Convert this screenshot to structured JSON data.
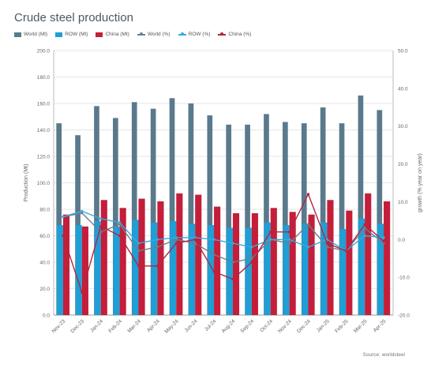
{
  "chart_data": {
    "type": "bar",
    "title": "Crude steel production",
    "ylabel": "Production (Mt)",
    "y2label": "growth (% year on year)",
    "ylim": [
      0,
      200
    ],
    "y2lim": [
      -20,
      50
    ],
    "yticks": [
      "0.0",
      "20.0",
      "40.0",
      "60.0",
      "80.0",
      "100.0",
      "120.0",
      "140.0",
      "160.0",
      "180.0",
      "200.0"
    ],
    "y2ticks": [
      "-20.0",
      "-10.0",
      "0.0",
      "10.0",
      "20.0",
      "30.0",
      "40.0",
      "50.0"
    ],
    "grid": true,
    "legend": "top-left",
    "categories": [
      "Nov-23",
      "Dec-23",
      "Jan-24",
      "Feb-24",
      "Mar-24",
      "Apr-24",
      "May-24",
      "Jun-24",
      "Jul-24",
      "Aug-24",
      "Sep-24",
      "Oct-24",
      "Nov-24",
      "Dec-24",
      "Jan-25",
      "Feb-25",
      "Mar-25",
      "Apr-25"
    ],
    "bar_series": [
      {
        "name": "World (Mt)",
        "color": "#5a7a8c",
        "values": [
          145,
          136,
          158,
          149,
          161,
          156,
          164,
          160,
          151,
          144,
          144,
          152,
          146,
          145,
          157,
          145,
          166,
          155
        ]
      },
      {
        "name": "ROW (Mt)",
        "color": "#1e9fd6",
        "values": [
          68,
          68,
          71,
          67,
          72,
          70,
          71,
          69,
          68,
          66,
          66,
          70,
          68,
          69,
          70,
          65,
          73,
          69
        ]
      },
      {
        "name": "China (Mt)",
        "color": "#c41e3a",
        "values": [
          76,
          67,
          87,
          81,
          88,
          86,
          92,
          91,
          82,
          77,
          77,
          81,
          78,
          76,
          87,
          79,
          92,
          86
        ]
      }
    ],
    "line_series": [
      {
        "name": "World (%)",
        "color": "#6d7f8c",
        "values": [
          6,
          7,
          2,
          4,
          -3,
          -2,
          0,
          -1,
          -4,
          -6,
          -5,
          0,
          -1,
          4,
          -2,
          -3,
          3,
          -1
        ]
      },
      {
        "name": "ROW (%)",
        "color": "#3aa9dc",
        "values": [
          6,
          7.5,
          5.5,
          4.5,
          -1,
          0,
          0.5,
          0.5,
          0,
          -1,
          -2,
          0,
          0,
          -2,
          0,
          -3,
          1,
          0.5
        ]
      },
      {
        "name": "China (%)",
        "color": "#b3263f",
        "values": [
          1,
          -14,
          3.5,
          1,
          -7,
          -7,
          -1,
          0,
          -8.5,
          -10.5,
          -6,
          2,
          2,
          12,
          -1,
          -3,
          4,
          -0.5
        ]
      }
    ]
  },
  "source": "Source: worldsteel"
}
